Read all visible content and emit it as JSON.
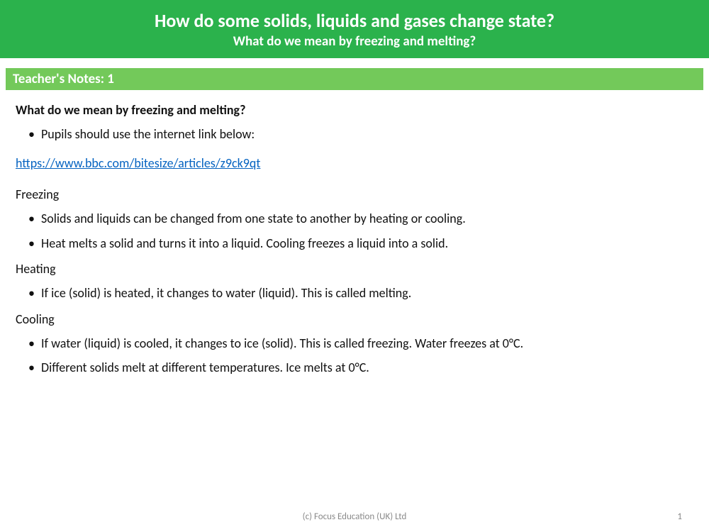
{
  "colors": {
    "header_bg": "#2bb24c",
    "notes_bar_bg": "#73c95a",
    "header_text": "#ffffff",
    "body_text": "#111111",
    "link_color": "#0563c1",
    "footer_text": "#8a8a8a",
    "page_bg": "#ffffff"
  },
  "typography": {
    "title_fontsize": 26,
    "subtitle_fontsize": 19,
    "notes_bar_fontsize": 19,
    "body_fontsize": 18,
    "footer_fontsize": 13,
    "font_family": "Calibri"
  },
  "header": {
    "title": "How do some solids, liquids and gases change state?",
    "subtitle": "What do we mean by freezing and melting?"
  },
  "notes_bar": {
    "label": "Teacher's Notes: 1"
  },
  "content": {
    "main_heading": "What do we mean by freezing and melting?",
    "intro_bullets": [
      "Pupils should use the internet link below:"
    ],
    "link": {
      "text": "https://www.bbc.com/bitesize/articles/z9ck9qt",
      "href": "https://www.bbc.com/bitesize/articles/z9ck9qt"
    },
    "sections": [
      {
        "heading": "Freezing",
        "bullets": [
          "Solids and liquids can be changed from one state to another by heating or cooling.",
          "Heat melts a solid and turns it into a liquid. Cooling freezes a liquid into a solid."
        ]
      },
      {
        "heading": "Heating",
        "bullets": [
          "If ice (solid) is heated, it changes to water (liquid). This is called melting."
        ]
      },
      {
        "heading": "Cooling",
        "bullets": [
          "If water (liquid) is cooled, it changes to ice (solid). This is called freezing. Water freezes at 0°C.",
          "Different solids melt at different temperatures. Ice melts at 0°C."
        ]
      }
    ]
  },
  "footer": {
    "copyright": "(c) Focus Education (UK) Ltd",
    "page_number": "1"
  }
}
